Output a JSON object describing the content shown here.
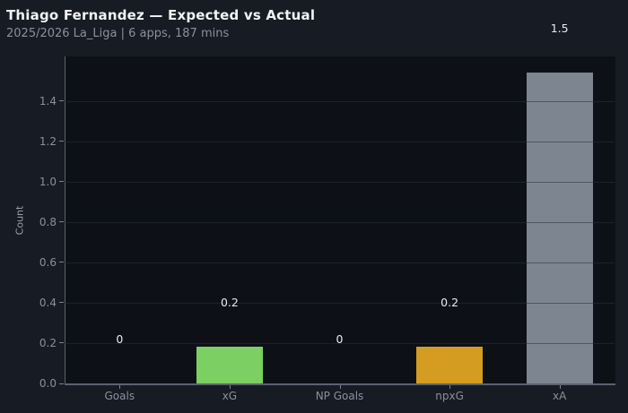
{
  "header": {
    "title": "Thiago Fernandez — Expected vs Actual",
    "subtitle": "2025/2026 La_Liga | 6 apps, 187 mins"
  },
  "chart_data": {
    "type": "bar",
    "title": "Thiago Fernandez — Expected vs Actual",
    "subtitle": "2025/2026 La_Liga | 6 apps, 187 mins",
    "categories": [
      "Goals",
      "xG",
      "NP Goals",
      "npxG",
      "xA"
    ],
    "values": [
      0,
      0.2,
      0,
      0.2,
      1.5
    ],
    "value_labels": [
      "0",
      "0.2",
      "0",
      "0.2",
      "1.5"
    ],
    "bar_render_values": [
      0,
      0.18,
      0,
      0.18,
      1.54
    ],
    "bar_colors": [
      null,
      "#7ccf63",
      null,
      "#d49c20",
      "#7d8591"
    ],
    "xlabel": "",
    "ylabel": "Count",
    "yticks": [
      0,
      0.2,
      0.4,
      0.6,
      0.8,
      1.0,
      1.2,
      1.4
    ],
    "ylim": [
      0,
      1.62
    ],
    "grid": true,
    "legend": false
  },
  "colors": {
    "figure_bg": "#171b23",
    "plot_bg": "#0d1117",
    "title": "#f0f3f6",
    "subtitle": "#8a919c",
    "tick_label": "#8a919c",
    "axis_line": "#5a6270",
    "tick_mark": "#7b828e",
    "value_label": "#e8ebef",
    "xg_green": "#7ccf63",
    "npxg_gold": "#d49c20",
    "xa_gray": "#7d8591"
  }
}
